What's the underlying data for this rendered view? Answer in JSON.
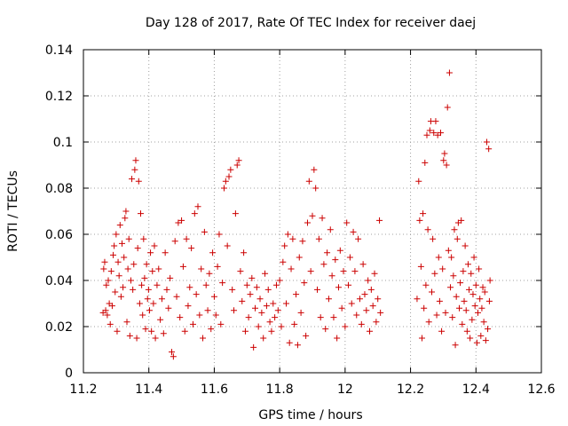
{
  "chart_data": {
    "type": "scatter",
    "title": "Day 128 of 2017, Rate Of TEC Index for receiver daej",
    "xlabel": "GPS time / hours",
    "ylabel": "ROTI / TECUs",
    "xlim": [
      11.2,
      12.6
    ],
    "ylim": [
      0,
      0.14
    ],
    "xticks": [
      "11.2",
      "11.4",
      "11.6",
      "11.8",
      "12",
      "12.2",
      "12.4",
      "12.6"
    ],
    "yticks": [
      "0",
      "0.02",
      "0.04",
      "0.06",
      "0.08",
      "0.1",
      "0.12",
      "0.14"
    ],
    "grid": true,
    "marker": "+",
    "color": "#cc0000",
    "series": [
      {
        "name": "ROTI",
        "points": [
          [
            11.26,
            0.026
          ],
          [
            11.262,
            0.045
          ],
          [
            11.265,
            0.048
          ],
          [
            11.268,
            0.027
          ],
          [
            11.27,
            0.038
          ],
          [
            11.273,
            0.025
          ],
          [
            11.276,
            0.04
          ],
          [
            11.279,
            0.03
          ],
          [
            11.282,
            0.021
          ],
          [
            11.285,
            0.044
          ],
          [
            11.288,
            0.029
          ],
          [
            11.291,
            0.051
          ],
          [
            11.294,
            0.055
          ],
          [
            11.297,
            0.035
          ],
          [
            11.3,
            0.06
          ],
          [
            11.303,
            0.018
          ],
          [
            11.306,
            0.048
          ],
          [
            11.309,
            0.042
          ],
          [
            11.312,
            0.064
          ],
          [
            11.315,
            0.033
          ],
          [
            11.318,
            0.056
          ],
          [
            11.321,
            0.037
          ],
          [
            11.324,
            0.05
          ],
          [
            11.327,
            0.067
          ],
          [
            11.33,
            0.07
          ],
          [
            11.333,
            0.022
          ],
          [
            11.336,
            0.045
          ],
          [
            11.339,
            0.058
          ],
          [
            11.342,
            0.016
          ],
          [
            11.345,
            0.04
          ],
          [
            11.348,
            0.084
          ],
          [
            11.351,
            0.036
          ],
          [
            11.354,
            0.047
          ],
          [
            11.357,
            0.088
          ],
          [
            11.36,
            0.092
          ],
          [
            11.363,
            0.015
          ],
          [
            11.366,
            0.054
          ],
          [
            11.369,
            0.083
          ],
          [
            11.372,
            0.03
          ],
          [
            11.375,
            0.069
          ],
          [
            11.378,
            0.038
          ],
          [
            11.381,
            0.025
          ],
          [
            11.384,
            0.058
          ],
          [
            11.387,
            0.041
          ],
          [
            11.39,
            0.019
          ],
          [
            11.393,
            0.047
          ],
          [
            11.396,
            0.032
          ],
          [
            11.399,
            0.036
          ],
          [
            11.402,
            0.027
          ],
          [
            11.405,
            0.052
          ],
          [
            11.408,
            0.018
          ],
          [
            11.411,
            0.044
          ],
          [
            11.414,
            0.03
          ],
          [
            11.417,
            0.055
          ],
          [
            11.42,
            0.015
          ],
          [
            11.425,
            0.038
          ],
          [
            11.43,
            0.045
          ],
          [
            11.435,
            0.023
          ],
          [
            11.44,
            0.032
          ],
          [
            11.445,
            0.017
          ],
          [
            11.45,
            0.052
          ],
          [
            11.455,
            0.036
          ],
          [
            11.46,
            0.028
          ],
          [
            11.465,
            0.041
          ],
          [
            11.47,
            0.009
          ],
          [
            11.475,
            0.007
          ],
          [
            11.48,
            0.057
          ],
          [
            11.485,
            0.033
          ],
          [
            11.49,
            0.065
          ],
          [
            11.495,
            0.024
          ],
          [
            11.5,
            0.066
          ],
          [
            11.505,
            0.046
          ],
          [
            11.51,
            0.018
          ],
          [
            11.515,
            0.058
          ],
          [
            11.52,
            0.029
          ],
          [
            11.525,
            0.037
          ],
          [
            11.53,
            0.054
          ],
          [
            11.535,
            0.021
          ],
          [
            11.54,
            0.069
          ],
          [
            11.545,
            0.034
          ],
          [
            11.55,
            0.072
          ],
          [
            11.555,
            0.025
          ],
          [
            11.56,
            0.045
          ],
          [
            11.565,
            0.015
          ],
          [
            11.57,
            0.061
          ],
          [
            11.575,
            0.038
          ],
          [
            11.58,
            0.027
          ],
          [
            11.585,
            0.043
          ],
          [
            11.59,
            0.019
          ],
          [
            11.595,
            0.052
          ],
          [
            11.6,
            0.033
          ],
          [
            11.605,
            0.025
          ],
          [
            11.61,
            0.046
          ],
          [
            11.615,
            0.06
          ],
          [
            11.62,
            0.021
          ],
          [
            11.625,
            0.039
          ],
          [
            11.63,
            0.08
          ],
          [
            11.635,
            0.083
          ],
          [
            11.64,
            0.055
          ],
          [
            11.645,
            0.085
          ],
          [
            11.65,
            0.088
          ],
          [
            11.655,
            0.036
          ],
          [
            11.66,
            0.027
          ],
          [
            11.665,
            0.069
          ],
          [
            11.67,
            0.09
          ],
          [
            11.675,
            0.092
          ],
          [
            11.68,
            0.044
          ],
          [
            11.685,
            0.031
          ],
          [
            11.69,
            0.052
          ],
          [
            11.695,
            0.018
          ],
          [
            11.7,
            0.038
          ],
          [
            11.705,
            0.024
          ],
          [
            11.71,
            0.034
          ],
          [
            11.715,
            0.041
          ],
          [
            11.72,
            0.011
          ],
          [
            11.725,
            0.028
          ],
          [
            11.73,
            0.037
          ],
          [
            11.735,
            0.02
          ],
          [
            11.74,
            0.032
          ],
          [
            11.745,
            0.026
          ],
          [
            11.75,
            0.015
          ],
          [
            11.755,
            0.043
          ],
          [
            11.76,
            0.029
          ],
          [
            11.765,
            0.036
          ],
          [
            11.77,
            0.022
          ],
          [
            11.775,
            0.018
          ],
          [
            11.78,
            0.03
          ],
          [
            11.785,
            0.024
          ],
          [
            11.79,
            0.038
          ],
          [
            11.795,
            0.027
          ],
          [
            11.8,
            0.04
          ],
          [
            11.805,
            0.02
          ],
          [
            11.81,
            0.048
          ],
          [
            11.815,
            0.055
          ],
          [
            11.82,
            0.03
          ],
          [
            11.825,
            0.06
          ],
          [
            11.83,
            0.013
          ],
          [
            11.835,
            0.045
          ],
          [
            11.84,
            0.058
          ],
          [
            11.845,
            0.021
          ],
          [
            11.85,
            0.034
          ],
          [
            11.855,
            0.012
          ],
          [
            11.86,
            0.05
          ],
          [
            11.865,
            0.026
          ],
          [
            11.87,
            0.057
          ],
          [
            11.875,
            0.039
          ],
          [
            11.88,
            0.016
          ],
          [
            11.885,
            0.065
          ],
          [
            11.89,
            0.083
          ],
          [
            11.895,
            0.044
          ],
          [
            11.9,
            0.068
          ],
          [
            11.905,
            0.088
          ],
          [
            11.91,
            0.08
          ],
          [
            11.915,
            0.036
          ],
          [
            11.92,
            0.058
          ],
          [
            11.925,
            0.024
          ],
          [
            11.93,
            0.067
          ],
          [
            11.935,
            0.047
          ],
          [
            11.94,
            0.019
          ],
          [
            11.945,
            0.052
          ],
          [
            11.95,
            0.032
          ],
          [
            11.955,
            0.062
          ],
          [
            11.96,
            0.042
          ],
          [
            11.965,
            0.024
          ],
          [
            11.97,
            0.049
          ],
          [
            11.975,
            0.015
          ],
          [
            11.98,
            0.037
          ],
          [
            11.985,
            0.053
          ],
          [
            11.99,
            0.028
          ],
          [
            11.995,
            0.044
          ],
          [
            12.0,
            0.02
          ],
          [
            12.005,
            0.065
          ],
          [
            12.01,
            0.038
          ],
          [
            12.015,
            0.05
          ],
          [
            12.02,
            0.03
          ],
          [
            12.025,
            0.061
          ],
          [
            12.03,
            0.044
          ],
          [
            12.035,
            0.025
          ],
          [
            12.04,
            0.058
          ],
          [
            12.045,
            0.032
          ],
          [
            12.05,
            0.021
          ],
          [
            12.055,
            0.047
          ],
          [
            12.06,
            0.034
          ],
          [
            12.065,
            0.027
          ],
          [
            12.07,
            0.04
          ],
          [
            12.075,
            0.018
          ],
          [
            12.08,
            0.036
          ],
          [
            12.085,
            0.029
          ],
          [
            12.09,
            0.043
          ],
          [
            12.095,
            0.022
          ],
          [
            12.1,
            0.032
          ],
          [
            12.105,
            0.066
          ],
          [
            12.108,
            0.026
          ],
          [
            12.22,
            0.032
          ],
          [
            12.225,
            0.083
          ],
          [
            12.228,
            0.066
          ],
          [
            12.232,
            0.046
          ],
          [
            12.235,
            0.015
          ],
          [
            12.238,
            0.069
          ],
          [
            12.241,
            0.028
          ],
          [
            12.244,
            0.091
          ],
          [
            12.247,
            0.038
          ],
          [
            12.25,
            0.103
          ],
          [
            12.253,
            0.062
          ],
          [
            12.256,
            0.022
          ],
          [
            12.259,
            0.105
          ],
          [
            12.262,
            0.109
          ],
          [
            12.265,
            0.035
          ],
          [
            12.268,
            0.058
          ],
          [
            12.271,
            0.104
          ],
          [
            12.274,
            0.043
          ],
          [
            12.277,
            0.109
          ],
          [
            12.28,
            0.025
          ],
          [
            12.283,
            0.103
          ],
          [
            12.286,
            0.05
          ],
          [
            12.289,
            0.031
          ],
          [
            12.292,
            0.104
          ],
          [
            12.295,
            0.018
          ],
          [
            12.298,
            0.045
          ],
          [
            12.301,
            0.092
          ],
          [
            12.304,
            0.095
          ],
          [
            12.307,
            0.026
          ],
          [
            12.31,
            0.09
          ],
          [
            12.313,
            0.115
          ],
          [
            12.316,
            0.053
          ],
          [
            12.319,
            0.13
          ],
          [
            12.322,
            0.037
          ],
          [
            12.325,
            0.05
          ],
          [
            12.328,
            0.024
          ],
          [
            12.331,
            0.042
          ],
          [
            12.334,
            0.062
          ],
          [
            12.337,
            0.012
          ],
          [
            12.34,
            0.033
          ],
          [
            12.343,
            0.058
          ],
          [
            12.346,
            0.065
          ],
          [
            12.349,
            0.028
          ],
          [
            12.352,
            0.039
          ],
          [
            12.355,
            0.066
          ],
          [
            12.358,
            0.021
          ],
          [
            12.361,
            0.044
          ],
          [
            12.364,
            0.031
          ],
          [
            12.367,
            0.055
          ],
          [
            12.37,
            0.027
          ],
          [
            12.373,
            0.018
          ],
          [
            12.376,
            0.047
          ],
          [
            12.379,
            0.036
          ],
          [
            12.382,
            0.015
          ],
          [
            12.385,
            0.043
          ],
          [
            12.388,
            0.023
          ],
          [
            12.391,
            0.034
          ],
          [
            12.394,
            0.05
          ],
          [
            12.397,
            0.029
          ],
          [
            12.4,
            0.038
          ],
          [
            12.403,
            0.013
          ],
          [
            12.406,
            0.026
          ],
          [
            12.409,
            0.045
          ],
          [
            12.412,
            0.032
          ],
          [
            12.415,
            0.016
          ],
          [
            12.418,
            0.028
          ],
          [
            12.421,
            0.037
          ],
          [
            12.424,
            0.022
          ],
          [
            12.427,
            0.035
          ],
          [
            12.43,
            0.014
          ],
          [
            12.433,
            0.1
          ],
          [
            12.436,
            0.019
          ],
          [
            12.439,
            0.097
          ],
          [
            12.441,
            0.031
          ],
          [
            12.443,
            0.04
          ]
        ]
      }
    ]
  }
}
